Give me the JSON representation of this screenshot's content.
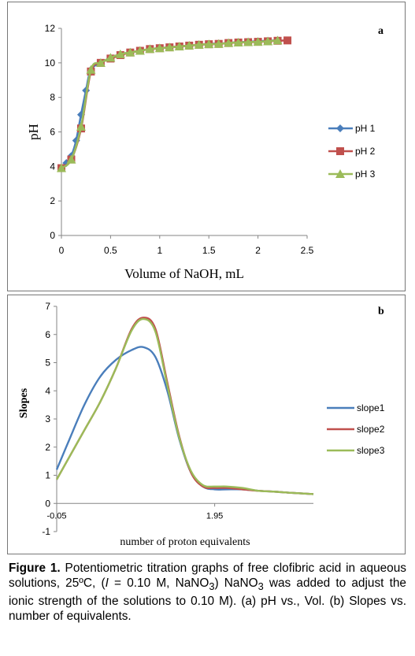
{
  "chart_data": [
    {
      "type": "line",
      "panel_label": "a",
      "xlabel": "Volume of NaOH, mL",
      "ylabel": "pH",
      "xlim": [
        0,
        2.5
      ],
      "ylim": [
        0,
        12
      ],
      "xticks": [
        "0",
        "0.5",
        "1",
        "1.5",
        "2",
        "2.5"
      ],
      "yticks": [
        "0",
        "2",
        "4",
        "6",
        "8",
        "10",
        "12"
      ],
      "legend_position": "right",
      "grid": false,
      "series": [
        {
          "name": "pH 1",
          "color": "#4a7ebb",
          "marker": "diamond",
          "x": [
            0,
            0.05,
            0.1,
            0.15,
            0.2,
            0.25,
            0.3,
            0.4,
            0.5,
            0.6,
            0.7,
            0.8,
            0.9,
            1.0,
            1.1,
            1.2,
            1.3,
            1.4,
            1.5,
            1.6,
            1.7,
            1.8,
            1.9,
            2.0,
            2.1,
            2.2
          ],
          "y": [
            3.9,
            4.2,
            4.6,
            5.5,
            7.0,
            8.4,
            9.6,
            10.0,
            10.3,
            10.5,
            10.6,
            10.7,
            10.8,
            10.85,
            10.9,
            10.95,
            11.0,
            11.05,
            11.1,
            11.12,
            11.15,
            11.2,
            11.22,
            11.25,
            11.28,
            11.3
          ]
        },
        {
          "name": "pH 2",
          "color": "#c0504d",
          "marker": "square",
          "x": [
            0,
            0.1,
            0.2,
            0.3,
            0.4,
            0.5,
            0.6,
            0.7,
            0.8,
            0.9,
            1.0,
            1.1,
            1.2,
            1.3,
            1.4,
            1.5,
            1.6,
            1.7,
            1.8,
            1.9,
            2.0,
            2.1,
            2.2,
            2.3
          ],
          "y": [
            3.9,
            4.4,
            6.2,
            9.5,
            10.0,
            10.25,
            10.45,
            10.6,
            10.7,
            10.8,
            10.85,
            10.9,
            10.95,
            11.0,
            11.05,
            11.08,
            11.1,
            11.15,
            11.18,
            11.2,
            11.22,
            11.25,
            11.28,
            11.3
          ]
        },
        {
          "name": "pH 3",
          "color": "#9bbb59",
          "marker": "triangle",
          "x": [
            0,
            0.1,
            0.2,
            0.3,
            0.4,
            0.5,
            0.6,
            0.7,
            0.8,
            0.9,
            1.0,
            1.1,
            1.2,
            1.3,
            1.4,
            1.5,
            1.6,
            1.7,
            1.8,
            1.9,
            2.0,
            2.1,
            2.2
          ],
          "y": [
            3.9,
            4.4,
            6.3,
            9.6,
            10.0,
            10.3,
            10.5,
            10.6,
            10.7,
            10.8,
            10.85,
            10.9,
            10.95,
            11.0,
            11.05,
            11.08,
            11.1,
            11.15,
            11.18,
            11.2,
            11.22,
            11.25,
            11.3
          ]
        }
      ]
    },
    {
      "type": "line",
      "panel_label": "b",
      "xlabel": "number of proton equivalents",
      "ylabel": "Slopes",
      "xlim": [
        -0.05,
        3.2
      ],
      "ylim": [
        -1,
        7
      ],
      "xticks": [
        "-0.05",
        "1.95"
      ],
      "yticks": [
        "-1",
        "0",
        "1",
        "2",
        "3",
        "4",
        "5",
        "6",
        "7"
      ],
      "legend_position": "right",
      "grid": false,
      "series": [
        {
          "name": "slope1",
          "color": "#4a7ebb",
          "x": [
            -0.05,
            0.1,
            0.3,
            0.5,
            0.7,
            0.9,
            1.05,
            1.2,
            1.35,
            1.5,
            1.65,
            1.8,
            1.95,
            2.1,
            2.3,
            2.5,
            2.7,
            2.9,
            3.2
          ],
          "y": [
            1.2,
            2.2,
            3.5,
            4.5,
            5.1,
            5.45,
            5.55,
            5.2,
            4.0,
            2.3,
            1.1,
            0.6,
            0.5,
            0.5,
            0.5,
            0.45,
            0.42,
            0.38,
            0.33
          ]
        },
        {
          "name": "slope2",
          "color": "#c0504d",
          "x": [
            -0.05,
            0.1,
            0.3,
            0.5,
            0.7,
            0.9,
            1.05,
            1.2,
            1.35,
            1.5,
            1.65,
            1.8,
            1.95,
            2.1,
            2.3,
            2.5,
            2.7,
            2.9,
            3.2
          ],
          "y": [
            0.85,
            1.6,
            2.6,
            3.6,
            4.8,
            6.2,
            6.6,
            6.2,
            4.3,
            2.4,
            1.1,
            0.6,
            0.55,
            0.55,
            0.5,
            0.45,
            0.42,
            0.38,
            0.33
          ]
        },
        {
          "name": "slope3",
          "color": "#9bbb59",
          "x": [
            -0.05,
            0.1,
            0.3,
            0.5,
            0.7,
            0.9,
            1.05,
            1.2,
            1.35,
            1.5,
            1.65,
            1.8,
            1.95,
            2.1,
            2.3,
            2.5,
            2.7,
            2.9,
            3.2
          ],
          "y": [
            0.85,
            1.6,
            2.6,
            3.6,
            4.8,
            6.15,
            6.55,
            6.1,
            4.2,
            2.35,
            1.15,
            0.65,
            0.6,
            0.6,
            0.55,
            0.45,
            0.42,
            0.38,
            0.33
          ]
        }
      ]
    }
  ],
  "caption": {
    "lead": "Figure 1.",
    "text": " Potentiometric titration graphs of free clofibric acid in aqueous solutions, 25ºC, (",
    "italic_i": "I",
    "text2": " = 0.10 M, NaNO",
    "sub1": "3",
    "text3": ") NaNO",
    "sub2": "3",
    "text4": " was added to adjust the ionic strength of the solutions to 0.10 M). (a) pH vs., Vol. (b) Slopes vs. number of equivalents."
  }
}
